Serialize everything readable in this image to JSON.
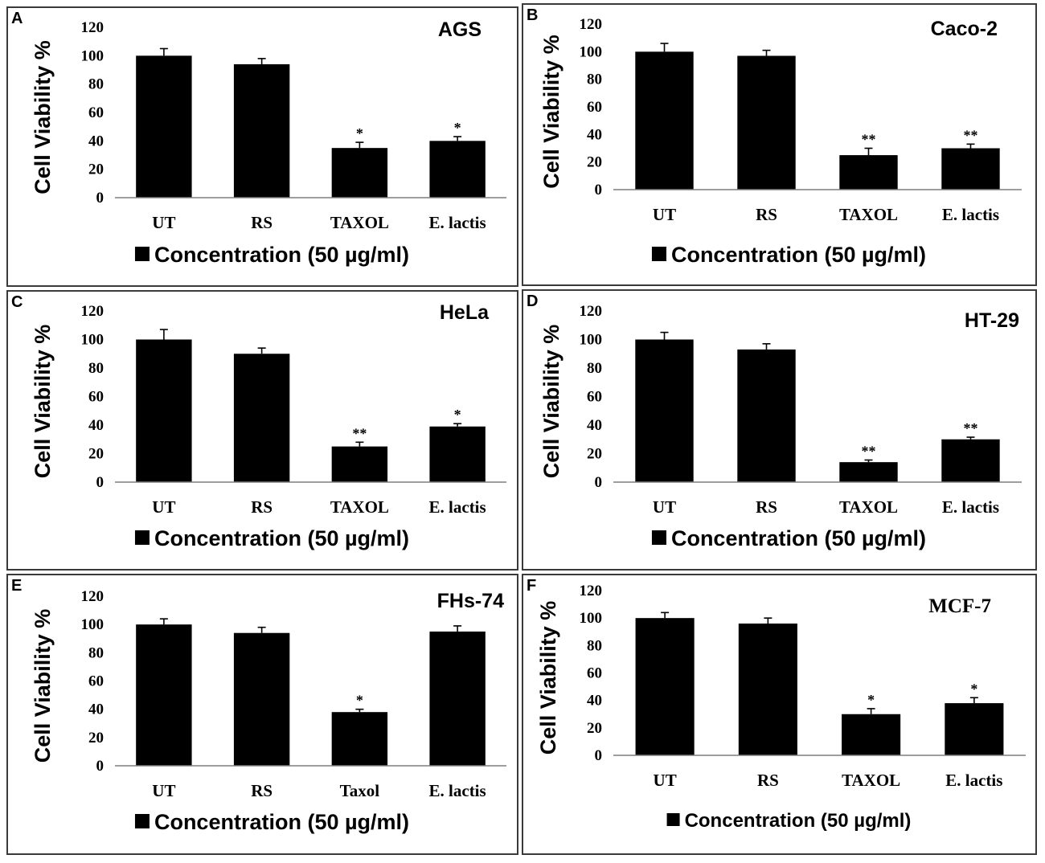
{
  "chart_data": [
    {
      "panel": "A",
      "type": "bar",
      "title": "AGS",
      "title_style": "sans",
      "ylabel": "Cell Viability %",
      "ylim": [
        0,
        120
      ],
      "yticks": [
        0,
        20,
        40,
        60,
        80,
        100,
        120
      ],
      "categories": [
        "UT",
        "RS",
        "TAXOL",
        "E. lactis"
      ],
      "values": [
        100,
        94,
        35,
        40
      ],
      "errors": [
        5,
        4,
        4,
        3
      ],
      "significance": [
        "",
        "",
        "*",
        "*"
      ],
      "legend": "Concentration (50 µg/ml)",
      "grid": false
    },
    {
      "panel": "B",
      "type": "bar",
      "title": "Caco-2",
      "title_style": "sans",
      "ylabel": "Cell Viability %",
      "ylim": [
        0,
        120
      ],
      "yticks": [
        0,
        20,
        40,
        60,
        80,
        100,
        120
      ],
      "categories": [
        "UT",
        "RS",
        "TAXOL",
        "E. lactis"
      ],
      "values": [
        100,
        97,
        25,
        30
      ],
      "errors": [
        6,
        4,
        5,
        3
      ],
      "significance": [
        "",
        "",
        "**",
        "**"
      ],
      "legend": "Concentration (50 µg/ml)",
      "grid": false
    },
    {
      "panel": "C",
      "type": "bar",
      "title": "HeLa",
      "title_style": "sans",
      "ylabel": "Cell Viability %",
      "ylim": [
        0,
        120
      ],
      "yticks": [
        0,
        20,
        40,
        60,
        80,
        100,
        120
      ],
      "categories": [
        "UT",
        "RS",
        "TAXOL",
        "E. lactis"
      ],
      "values": [
        100,
        90,
        25,
        39
      ],
      "errors": [
        7,
        4,
        3,
        2
      ],
      "significance": [
        "",
        "",
        "**",
        "*"
      ],
      "legend": "Concentration (50 µg/ml)",
      "grid": false
    },
    {
      "panel": "D",
      "type": "bar",
      "title": "HT-29",
      "title_style": "sans",
      "ylabel": "Cell Viability %",
      "ylim": [
        0,
        120
      ],
      "yticks": [
        0,
        20,
        40,
        60,
        80,
        100,
        120
      ],
      "categories": [
        "UT",
        "RS",
        "TAXOL",
        "E. lactis"
      ],
      "values": [
        100,
        93,
        14,
        30
      ],
      "errors": [
        5,
        4,
        1.5,
        1.5
      ],
      "significance": [
        "",
        "",
        "**",
        "**"
      ],
      "legend": "Concentration (50 µg/ml)",
      "grid": false
    },
    {
      "panel": "E",
      "type": "bar",
      "title": "FHs-74",
      "title_style": "sans",
      "ylabel": "Cell Viability %",
      "ylim": [
        0,
        120
      ],
      "yticks": [
        0,
        20,
        40,
        60,
        80,
        100,
        120
      ],
      "categories": [
        "UT",
        "RS",
        "Taxol",
        "E. lactis"
      ],
      "values": [
        100,
        94,
        38,
        95
      ],
      "errors": [
        4,
        4,
        2,
        4
      ],
      "significance": [
        "",
        "",
        "*",
        ""
      ],
      "legend": "Concentration (50 µg/ml)",
      "grid": false
    },
    {
      "panel": "F",
      "type": "bar",
      "title": "MCF-7",
      "title_style": "serif",
      "ylabel": "Cell Viability %",
      "ylim": [
        0,
        120
      ],
      "yticks": [
        0,
        20,
        40,
        60,
        80,
        100,
        120
      ],
      "categories": [
        "UT",
        "RS",
        "TAXOL",
        "E. lactis"
      ],
      "values": [
        100,
        96,
        30,
        38
      ],
      "errors": [
        4,
        4,
        4,
        4
      ],
      "significance": [
        "",
        "",
        "*",
        "*"
      ],
      "legend": "Concentration (50 µg/ml)",
      "grid": false
    }
  ],
  "colors": {
    "bar": "#000000",
    "axis": "#7f7f7f",
    "border": "#3a3a3a"
  }
}
